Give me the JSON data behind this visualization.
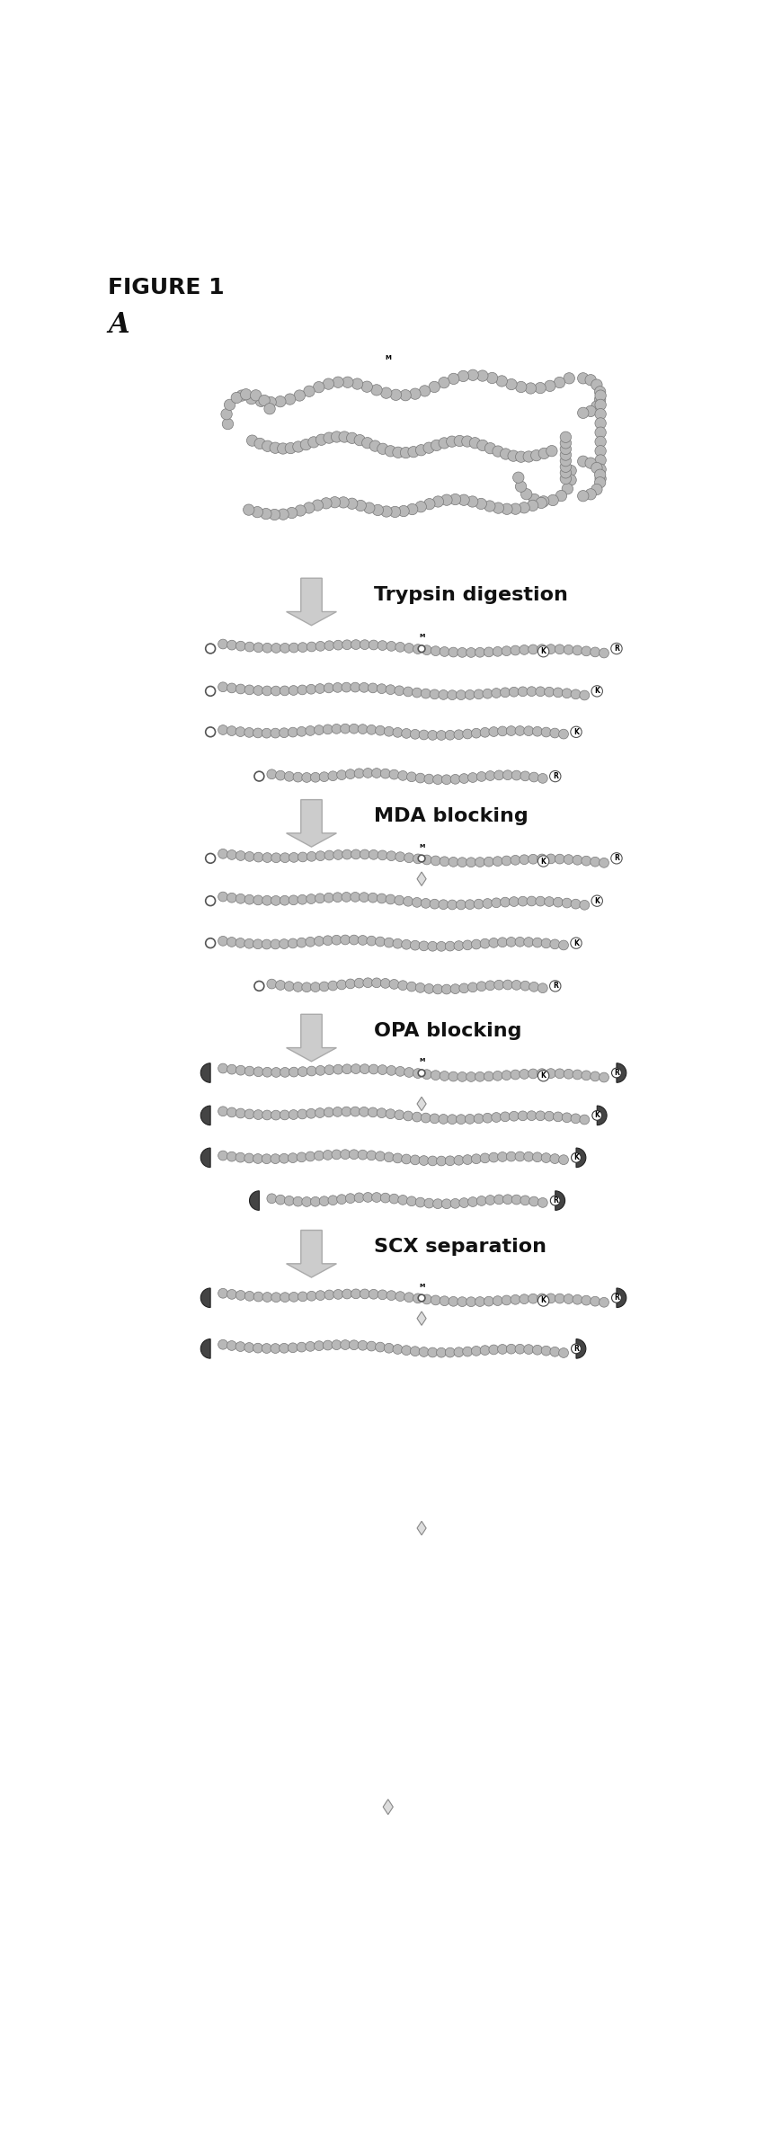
{
  "title": "FIGURE 1",
  "panel_label": "A",
  "steps": [
    {
      "label": "Trypsin digestion"
    },
    {
      "label": "MDA blocking"
    },
    {
      "label": "OPA blocking"
    },
    {
      "label": "SCX separation"
    }
  ],
  "background_color": "#ffffff",
  "peptide_color": "#b8b8b8",
  "peptide_outline": "#777777",
  "arrow_color": "#c8c8c8",
  "arrow_edge": "#aaaaaa",
  "blocked_color": "#444444",
  "text_color": "#111111",
  "title_fontsize": 18,
  "label_fontsize": 18,
  "step_fontsize": 16
}
